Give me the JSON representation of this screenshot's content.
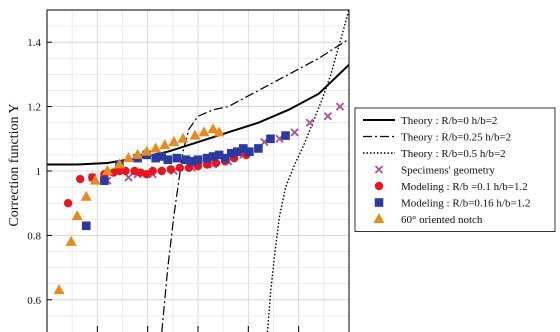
{
  "chart_data": {
    "type": "line",
    "ylabel": "Correction function Y",
    "ylim": [
      0.5,
      1.5
    ],
    "xlim": [
      0,
      1
    ],
    "yticks": [
      "0.6",
      "0.8",
      "1",
      "1.2",
      "1.4"
    ],
    "ytick_values": [
      0.6,
      0.8,
      1.0,
      1.2,
      1.4
    ],
    "grid": true,
    "legend_position": "right",
    "series": [
      {
        "name": "Theory : R/b=0 h/b=2",
        "kind": "line",
        "style": "solid",
        "color": "#000000",
        "x": [
          0.0,
          0.1,
          0.2,
          0.3,
          0.4,
          0.5,
          0.6,
          0.7,
          0.8,
          0.9,
          1.0
        ],
        "y": [
          1.02,
          1.02,
          1.025,
          1.04,
          1.06,
          1.09,
          1.12,
          1.15,
          1.19,
          1.24,
          1.33
        ]
      },
      {
        "name": "Theory : R/b=0.25 h/b=2",
        "kind": "line",
        "style": "dashdot",
        "color": "#000000",
        "x": [
          0.38,
          0.4,
          0.42,
          0.45,
          0.47,
          0.5,
          0.55,
          0.6,
          0.7,
          0.8,
          0.9,
          1.0
        ],
        "y": [
          0.5,
          0.7,
          0.86,
          1.06,
          1.13,
          1.17,
          1.19,
          1.2,
          1.25,
          1.3,
          1.35,
          1.41
        ]
      },
      {
        "name": "Theory : R/b=0.5 h/b=2",
        "kind": "line",
        "style": "dotted",
        "color": "#000000",
        "x": [
          0.73,
          0.74,
          0.755,
          0.77,
          0.79,
          0.82,
          0.85,
          0.88,
          0.91,
          0.94,
          0.97,
          1.0
        ],
        "y": [
          0.5,
          0.62,
          0.75,
          0.86,
          0.95,
          1.02,
          1.08,
          1.15,
          1.22,
          1.3,
          1.4,
          1.5
        ]
      },
      {
        "name": "Specimens' geometry",
        "kind": "scatter",
        "marker": "x",
        "color": "#b04a9e",
        "x": [
          0.15,
          0.2,
          0.27,
          0.3,
          0.35,
          0.42,
          0.48,
          0.55,
          0.6,
          0.65,
          0.7,
          0.72,
          0.77,
          0.82,
          0.87,
          0.93,
          0.97
        ],
        "y": [
          0.98,
          0.97,
          0.98,
          0.99,
          0.99,
          1.0,
          1.01,
          1.02,
          1.03,
          1.05,
          1.07,
          1.09,
          1.1,
          1.12,
          1.15,
          1.17,
          1.2
        ]
      },
      {
        "name": "Modeling : R/b =0.1 h/b=1.2",
        "kind": "scatter",
        "marker": "circle",
        "color": "#e8141e",
        "x": [
          0.07,
          0.11,
          0.15,
          0.19,
          0.22,
          0.24,
          0.26,
          0.29,
          0.31,
          0.33,
          0.35,
          0.38,
          0.41,
          0.44,
          0.47,
          0.5,
          0.53,
          0.56,
          0.59,
          0.62,
          0.66
        ],
        "y": [
          0.9,
          0.975,
          0.98,
          0.99,
          0.995,
          1.0,
          1.0,
          1.0,
          0.995,
          0.99,
          1.0,
          1.0,
          1.005,
          1.01,
          1.01,
          1.015,
          1.02,
          1.025,
          1.03,
          1.04,
          1.05
        ]
      },
      {
        "name": "Modeling : R/b=0.16 h/b=1.2",
        "kind": "scatter",
        "marker": "square",
        "color": "#2b3a9e",
        "x": [
          0.13,
          0.19,
          0.24,
          0.3,
          0.33,
          0.36,
          0.38,
          0.4,
          0.43,
          0.46,
          0.48,
          0.5,
          0.53,
          0.55,
          0.57,
          0.59,
          0.61,
          0.63,
          0.65,
          0.67,
          0.7,
          0.74,
          0.79
        ],
        "y": [
          0.83,
          0.97,
          1.02,
          1.04,
          1.05,
          1.04,
          1.045,
          1.035,
          1.04,
          1.035,
          1.03,
          1.035,
          1.04,
          1.045,
          1.05,
          1.04,
          1.055,
          1.06,
          1.07,
          1.06,
          1.07,
          1.1,
          1.11
        ]
      },
      {
        "name": "60° oriented notch",
        "kind": "scatter",
        "marker": "triangle",
        "color": "#e98a1e",
        "x": [
          0.04,
          0.08,
          0.1,
          0.13,
          0.16,
          0.2,
          0.24,
          0.27,
          0.3,
          0.33,
          0.36,
          0.39,
          0.42,
          0.45,
          0.49,
          0.52,
          0.55,
          0.57
        ],
        "y": [
          0.63,
          0.78,
          0.86,
          0.92,
          0.97,
          1.0,
          1.02,
          1.04,
          1.05,
          1.06,
          1.07,
          1.08,
          1.09,
          1.1,
          1.11,
          1.12,
          1.13,
          1.12
        ]
      }
    ]
  }
}
